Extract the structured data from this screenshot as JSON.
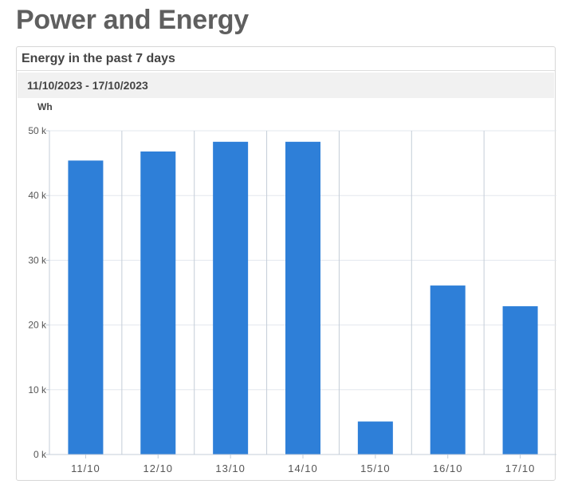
{
  "page": {
    "title": "Power and Energy"
  },
  "panel": {
    "title": "Energy in the past 7 days",
    "date_range": "11/10/2023 - 17/10/2023"
  },
  "colors": {
    "bar": "#2e7fd8",
    "grid": "#e3e7ee",
    "axis": "#c4cdd8",
    "range_background": "#f1f1f1"
  },
  "chart_data": {
    "type": "bar",
    "categories": [
      "11/10",
      "12/10",
      "13/10",
      "14/10",
      "15/10",
      "16/10",
      "17/10"
    ],
    "values": [
      45400,
      46800,
      48300,
      48300,
      5100,
      26100,
      22900
    ],
    "ylabel": "Wh",
    "ylim": [
      0,
      50000
    ],
    "yticks": [
      0,
      10000,
      20000,
      30000,
      40000,
      50000
    ],
    "ytick_labels": [
      "0 k",
      "10 k",
      "20 k",
      "30 k",
      "40 k",
      "50 k"
    ],
    "grid": true,
    "legend": "none"
  }
}
